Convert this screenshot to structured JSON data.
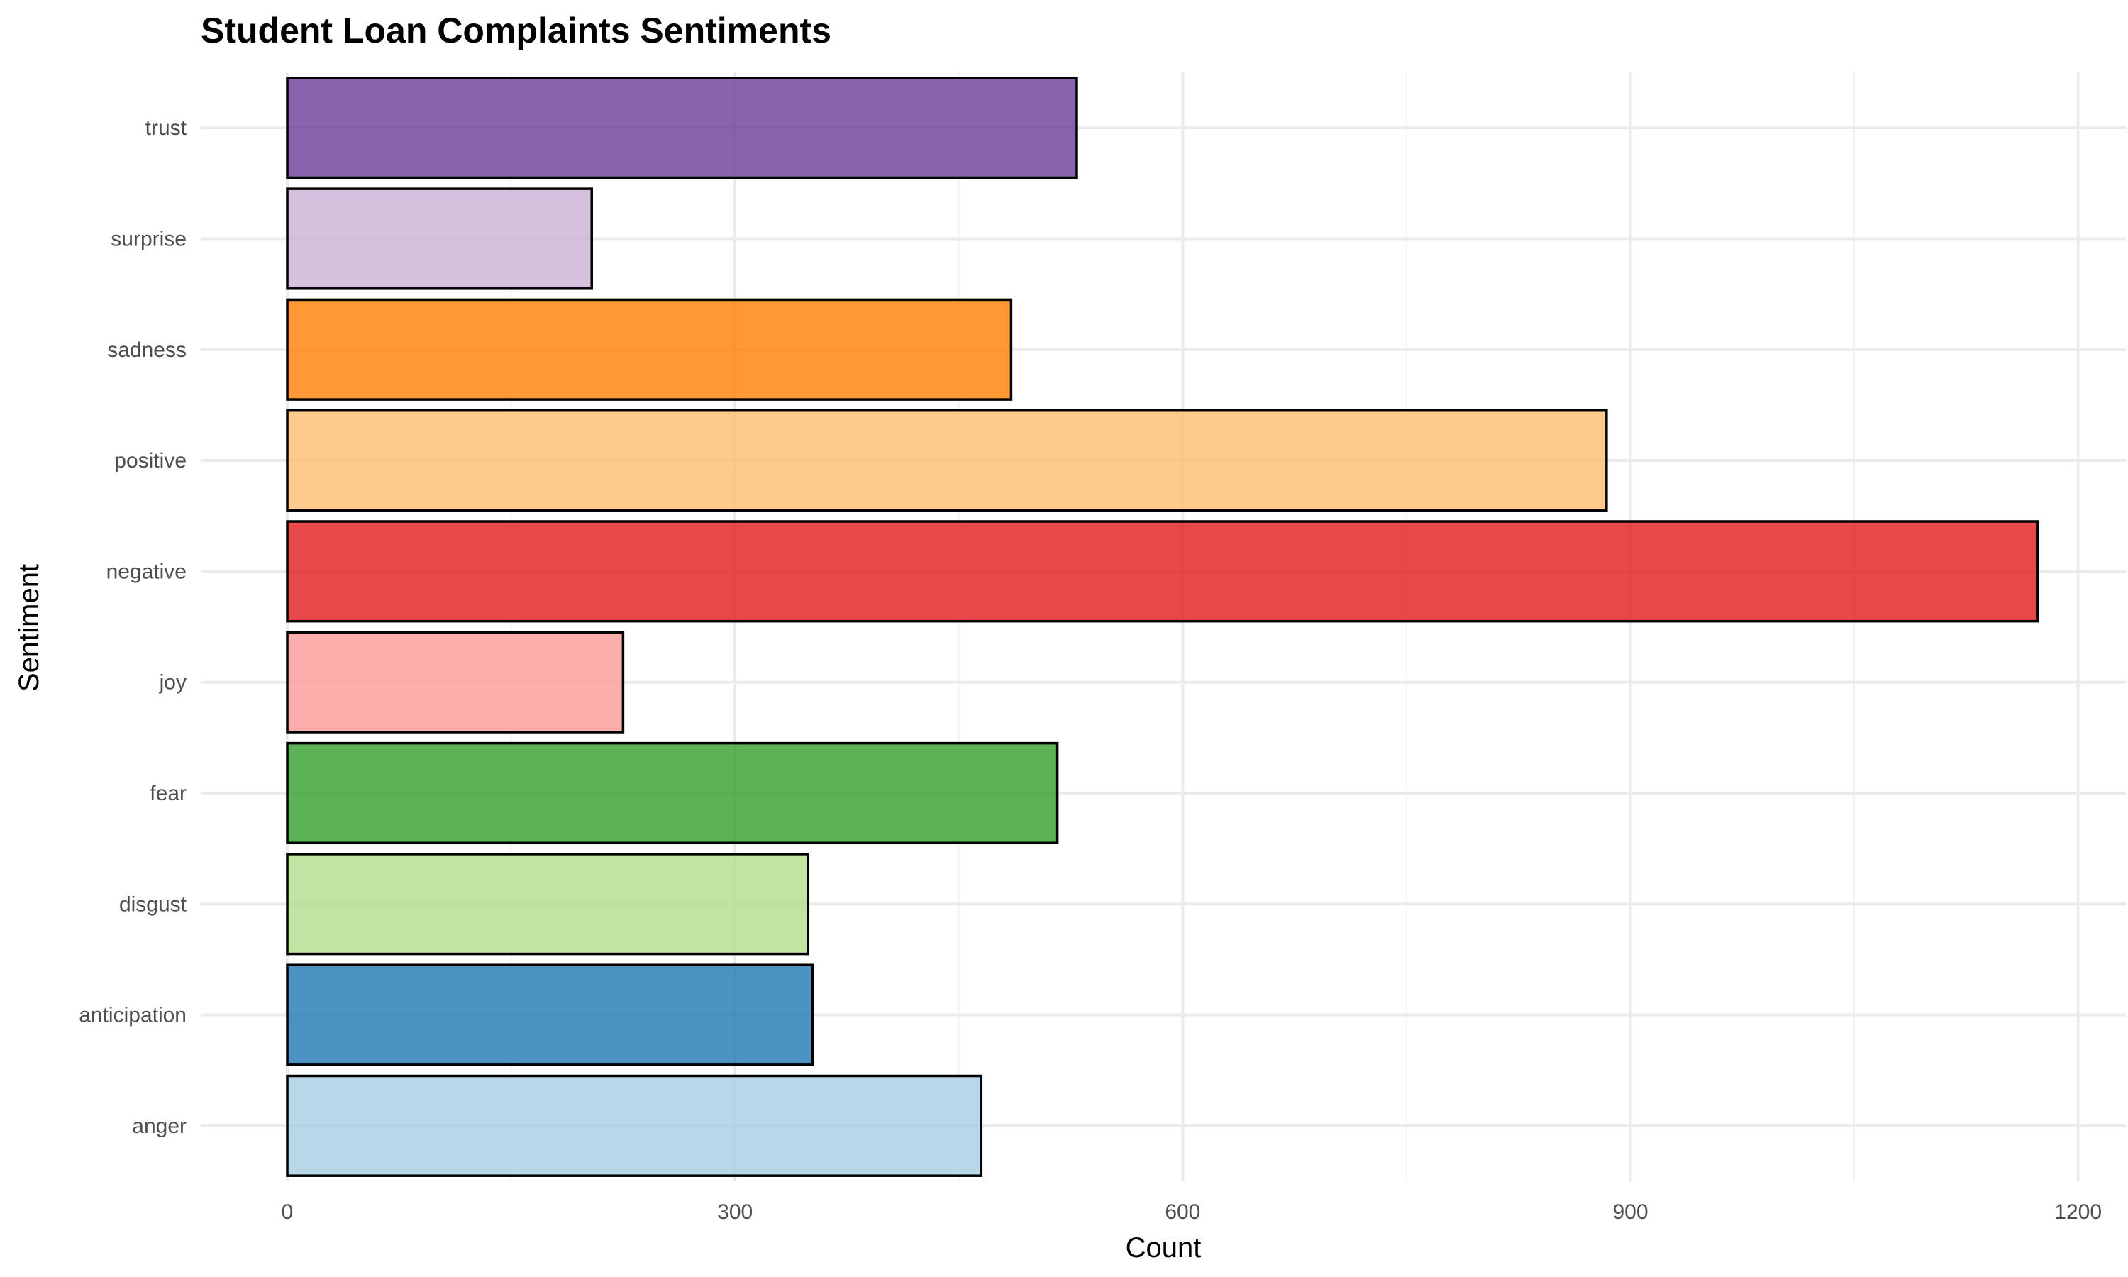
{
  "chart_data": {
    "type": "bar",
    "orientation": "horizontal",
    "title": "Student Loan Complaints Sentiments",
    "xlabel": "Count",
    "ylabel": "Sentiment",
    "categories": [
      "anger",
      "anticipation",
      "disgust",
      "fear",
      "joy",
      "negative",
      "positive",
      "sadness",
      "surprise",
      "trust"
    ],
    "values": [
      465,
      352,
      349,
      516,
      225,
      1173,
      884,
      485,
      204,
      529
    ],
    "colors": [
      "#a6cee3",
      "#1f78b4",
      "#b2df8a",
      "#33a02c",
      "#fb9a99",
      "#e31a1c",
      "#fdbf6f",
      "#ff7f00",
      "#cab2d6",
      "#6a3d9a"
    ],
    "xticks": [
      0,
      300,
      600,
      900,
      1200
    ],
    "xlim": [
      -58,
      1232
    ],
    "grid": true,
    "legend": "none"
  }
}
